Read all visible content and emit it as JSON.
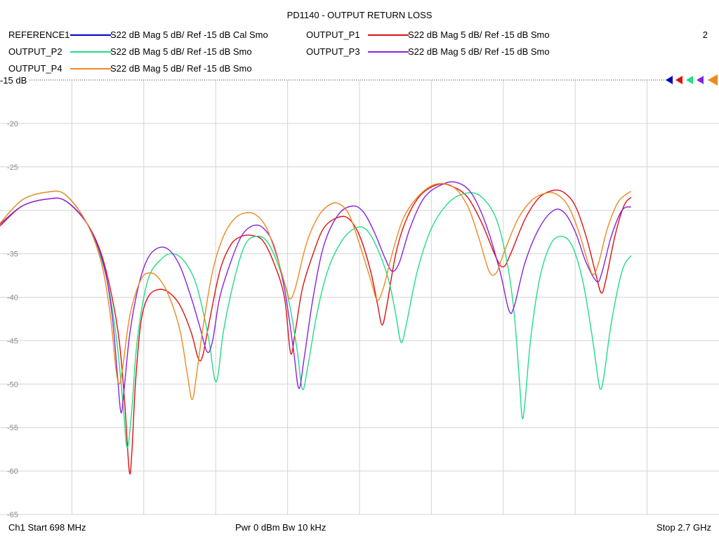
{
  "chart_data": {
    "type": "line",
    "title": "PD1140 - OUTPUT RETURN LOSS",
    "trace_number": "2",
    "ref_label": "-15 dB",
    "ylim": [
      -65,
      -15
    ],
    "xlim": [
      698,
      2700
    ],
    "x_unit": "MHz",
    "y_ticks": [
      -20,
      -25,
      -30,
      -35,
      -40,
      -45,
      -50,
      -55,
      -60,
      -65
    ],
    "y_tick_labels": [
      "-20",
      "-25",
      "",
      "-35",
      "-40",
      "-45",
      "-50",
      "-55",
      "-60",
      "-65"
    ],
    "x_divisions": 10,
    "grid": true,
    "legend_position": "top",
    "legend": [
      {
        "name": "REFERENCE1",
        "desc": "S22  dB Mag  5 dB/ Ref -15 dB  Cal Smo",
        "color": "#0000cc"
      },
      {
        "name": "OUTPUT_P1",
        "desc": "S22  dB Mag  5 dB/ Ref -15 dB  Smo",
        "color": "#dd1111"
      },
      {
        "name": "OUTPUT_P2",
        "desc": "S22  dB Mag  5 dB/ Ref -15 dB  Smo",
        "color": "#22dd88"
      },
      {
        "name": "OUTPUT_P3",
        "desc": "S22  dB Mag  5 dB/ Ref -15 dB  Smo",
        "color": "#8822dd"
      },
      {
        "name": "OUTPUT_P4",
        "desc": "S22  dB Mag  5 dB/ Ref -15 dB  Smo",
        "color": "#ee8822"
      }
    ],
    "series": [
      {
        "name": "OUTPUT_P1",
        "color": "#dd1111",
        "points": [
          [
            698,
            -31.8
          ],
          [
            760,
            -29.5
          ],
          [
            830,
            -28.7
          ],
          [
            880,
            -28.9
          ],
          [
            940,
            -31.5
          ],
          [
            980,
            -35
          ],
          [
            1010,
            -40
          ],
          [
            1030,
            -45
          ],
          [
            1045,
            -52
          ],
          [
            1058,
            -60
          ],
          [
            1065,
            -58
          ],
          [
            1075,
            -50
          ],
          [
            1090,
            -43
          ],
          [
            1110,
            -40
          ],
          [
            1140,
            -39.1
          ],
          [
            1170,
            -39.5
          ],
          [
            1200,
            -41
          ],
          [
            1230,
            -44
          ],
          [
            1250,
            -47
          ],
          [
            1262,
            -46.8
          ],
          [
            1280,
            -43
          ],
          [
            1310,
            -37
          ],
          [
            1340,
            -34
          ],
          [
            1370,
            -33
          ],
          [
            1400,
            -32.9
          ],
          [
            1430,
            -33.5
          ],
          [
            1460,
            -36
          ],
          [
            1490,
            -40
          ],
          [
            1507,
            -46.4
          ],
          [
            1520,
            -44
          ],
          [
            1540,
            -39
          ],
          [
            1570,
            -35
          ],
          [
            1600,
            -32
          ],
          [
            1640,
            -30.8
          ],
          [
            1670,
            -31
          ],
          [
            1700,
            -33
          ],
          [
            1730,
            -37
          ],
          [
            1750,
            -41
          ],
          [
            1762,
            -43.2
          ],
          [
            1775,
            -41
          ],
          [
            1800,
            -35
          ],
          [
            1830,
            -31
          ],
          [
            1870,
            -28.2
          ],
          [
            1920,
            -27
          ],
          [
            1960,
            -27.3
          ],
          [
            2000,
            -28.5
          ],
          [
            2040,
            -31.5
          ],
          [
            2080,
            -35.5
          ],
          [
            2100,
            -36.5
          ],
          [
            2120,
            -35
          ],
          [
            2160,
            -31
          ],
          [
            2200,
            -28.5
          ],
          [
            2240,
            -27.7
          ],
          [
            2270,
            -28
          ],
          [
            2300,
            -29.5
          ],
          [
            2330,
            -33
          ],
          [
            2355,
            -37
          ],
          [
            2372,
            -39.5
          ],
          [
            2385,
            -38
          ],
          [
            2410,
            -33
          ],
          [
            2435,
            -29.5
          ],
          [
            2455,
            -28.5
          ]
        ]
      },
      {
        "name": "OUTPUT_P2",
        "color": "#22dd88",
        "points": [
          [
            698,
            -31.5
          ],
          [
            760,
            -28.8
          ],
          [
            830,
            -27.9
          ],
          [
            880,
            -28.2
          ],
          [
            940,
            -31.5
          ],
          [
            990,
            -37
          ],
          [
            1020,
            -44
          ],
          [
            1040,
            -52
          ],
          [
            1052,
            -57.3
          ],
          [
            1065,
            -53
          ],
          [
            1080,
            -45
          ],
          [
            1110,
            -38
          ],
          [
            1150,
            -35.5
          ],
          [
            1180,
            -35
          ],
          [
            1210,
            -35.8
          ],
          [
            1240,
            -38
          ],
          [
            1260,
            -41
          ],
          [
            1280,
            -45
          ],
          [
            1295,
            -49.3
          ],
          [
            1305,
            -49
          ],
          [
            1320,
            -44
          ],
          [
            1350,
            -38
          ],
          [
            1380,
            -34
          ],
          [
            1410,
            -33
          ],
          [
            1440,
            -33.5
          ],
          [
            1470,
            -36
          ],
          [
            1500,
            -40
          ],
          [
            1525,
            -46
          ],
          [
            1540,
            -50.6
          ],
          [
            1555,
            -48
          ],
          [
            1580,
            -42
          ],
          [
            1610,
            -37
          ],
          [
            1650,
            -33.5
          ],
          [
            1690,
            -32
          ],
          [
            1720,
            -32.3
          ],
          [
            1750,
            -34.5
          ],
          [
            1780,
            -38
          ],
          [
            1800,
            -42
          ],
          [
            1815,
            -45.2
          ],
          [
            1830,
            -43
          ],
          [
            1860,
            -37
          ],
          [
            1900,
            -32
          ],
          [
            1950,
            -29
          ],
          [
            2000,
            -28
          ],
          [
            2040,
            -28.5
          ],
          [
            2080,
            -31
          ],
          [
            2110,
            -36
          ],
          [
            2130,
            -42
          ],
          [
            2145,
            -50
          ],
          [
            2152,
            -53.9
          ],
          [
            2160,
            -52
          ],
          [
            2175,
            -45
          ],
          [
            2200,
            -38
          ],
          [
            2230,
            -34
          ],
          [
            2260,
            -33
          ],
          [
            2290,
            -34
          ],
          [
            2320,
            -38
          ],
          [
            2345,
            -44
          ],
          [
            2362,
            -49
          ],
          [
            2370,
            -50.6
          ],
          [
            2380,
            -49
          ],
          [
            2400,
            -43
          ],
          [
            2430,
            -37
          ],
          [
            2455,
            -35.2
          ]
        ]
      },
      {
        "name": "OUTPUT_P3",
        "color": "#8822dd",
        "points": [
          [
            698,
            -31.6
          ],
          [
            760,
            -29.5
          ],
          [
            830,
            -28.7
          ],
          [
            880,
            -28.9
          ],
          [
            940,
            -31.5
          ],
          [
            985,
            -36
          ],
          [
            1010,
            -42
          ],
          [
            1025,
            -49
          ],
          [
            1035,
            -53.3
          ],
          [
            1045,
            -50
          ],
          [
            1060,
            -44
          ],
          [
            1085,
            -38.5
          ],
          [
            1110,
            -35.5
          ],
          [
            1140,
            -34.3
          ],
          [
            1170,
            -34.6
          ],
          [
            1200,
            -36.5
          ],
          [
            1230,
            -40
          ],
          [
            1255,
            -43.5
          ],
          [
            1275,
            -46.3
          ],
          [
            1290,
            -45
          ],
          [
            1310,
            -40
          ],
          [
            1340,
            -36
          ],
          [
            1370,
            -33
          ],
          [
            1400,
            -31.8
          ],
          [
            1430,
            -32
          ],
          [
            1460,
            -34
          ],
          [
            1490,
            -39
          ],
          [
            1515,
            -46
          ],
          [
            1530,
            -50.5
          ],
          [
            1545,
            -47
          ],
          [
            1570,
            -40
          ],
          [
            1600,
            -34
          ],
          [
            1640,
            -30.5
          ],
          [
            1680,
            -29.5
          ],
          [
            1710,
            -30.2
          ],
          [
            1740,
            -32.5
          ],
          [
            1770,
            -35.5
          ],
          [
            1790,
            -37
          ],
          [
            1810,
            -36
          ],
          [
            1840,
            -32
          ],
          [
            1880,
            -28.5
          ],
          [
            1930,
            -27
          ],
          [
            1970,
            -26.8
          ],
          [
            2010,
            -28
          ],
          [
            2050,
            -31.5
          ],
          [
            2090,
            -37
          ],
          [
            2115,
            -41.5
          ],
          [
            2130,
            -41
          ],
          [
            2160,
            -36
          ],
          [
            2200,
            -32
          ],
          [
            2240,
            -30
          ],
          [
            2270,
            -30.3
          ],
          [
            2300,
            -32.5
          ],
          [
            2330,
            -36
          ],
          [
            2360,
            -38.2
          ],
          [
            2375,
            -37
          ],
          [
            2400,
            -33
          ],
          [
            2430,
            -30
          ],
          [
            2455,
            -29.6
          ]
        ]
      },
      {
        "name": "OUTPUT_P4",
        "color": "#ee8822",
        "points": [
          [
            698,
            -31.5
          ],
          [
            760,
            -28.8
          ],
          [
            830,
            -27.9
          ],
          [
            880,
            -28.2
          ],
          [
            940,
            -31.5
          ],
          [
            980,
            -36
          ],
          [
            1005,
            -42
          ],
          [
            1020,
            -48
          ],
          [
            1030,
            -50
          ],
          [
            1040,
            -48
          ],
          [
            1060,
            -42
          ],
          [
            1090,
            -38
          ],
          [
            1115,
            -37.2
          ],
          [
            1140,
            -37.8
          ],
          [
            1170,
            -40
          ],
          [
            1200,
            -44
          ],
          [
            1220,
            -49
          ],
          [
            1233,
            -51.8
          ],
          [
            1245,
            -49
          ],
          [
            1265,
            -43
          ],
          [
            1290,
            -37
          ],
          [
            1320,
            -33
          ],
          [
            1350,
            -31
          ],
          [
            1380,
            -30.3
          ],
          [
            1410,
            -30.5
          ],
          [
            1440,
            -32
          ],
          [
            1470,
            -35.5
          ],
          [
            1495,
            -39
          ],
          [
            1505,
            -40.2
          ],
          [
            1520,
            -39
          ],
          [
            1550,
            -34
          ],
          [
            1580,
            -31
          ],
          [
            1610,
            -29.5
          ],
          [
            1640,
            -29.2
          ],
          [
            1670,
            -30.5
          ],
          [
            1700,
            -34
          ],
          [
            1730,
            -38
          ],
          [
            1748,
            -40.3
          ],
          [
            1765,
            -39
          ],
          [
            1790,
            -35
          ],
          [
            1820,
            -31
          ],
          [
            1860,
            -28.5
          ],
          [
            1910,
            -27
          ],
          [
            1960,
            -27.3
          ],
          [
            2000,
            -29.5
          ],
          [
            2030,
            -33
          ],
          [
            2060,
            -37
          ],
          [
            2080,
            -37.2
          ],
          [
            2100,
            -35
          ],
          [
            2140,
            -31
          ],
          [
            2180,
            -28.8
          ],
          [
            2220,
            -28
          ],
          [
            2250,
            -28.2
          ],
          [
            2280,
            -29.5
          ],
          [
            2310,
            -32.5
          ],
          [
            2335,
            -36
          ],
          [
            2350,
            -37.4
          ],
          [
            2365,
            -36
          ],
          [
            2390,
            -32
          ],
          [
            2420,
            -29
          ],
          [
            2455,
            -27.8
          ]
        ]
      }
    ],
    "footer_left": "Ch1  Start  698 MHz",
    "footer_mid": "Pwr  0 dBm  Bw  10 kHz",
    "footer_right": "Stop  2.7 GHz"
  }
}
